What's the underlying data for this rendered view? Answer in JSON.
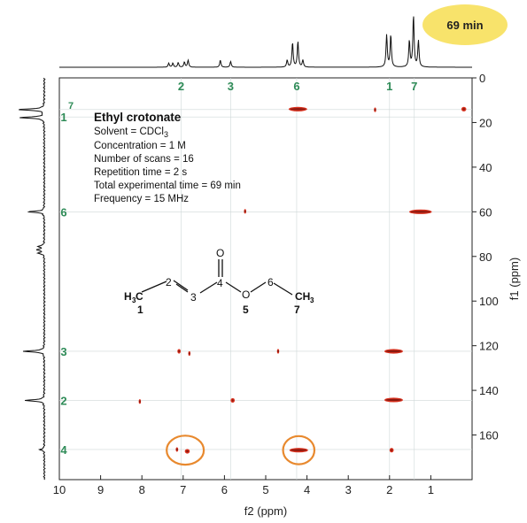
{
  "badge": {
    "text": "69 min",
    "color": "#f8e36b"
  },
  "info": {
    "title": "Ethyl crotonate",
    "solvent_prefix": "Solvent = CDCl",
    "solvent_sub": "3",
    "concentration": "Concentration = 1 M",
    "scans": "Number of scans = 16",
    "repetition": "Repetition time = 2 s",
    "total_time": "Total experimental time = 69 min",
    "frequency": "Frequency = 15 MHz"
  },
  "molecule": {
    "atoms": [
      {
        "label": "H",
        "role": "carbon-prefix"
      },
      {
        "label": "C",
        "role": "carbon"
      },
      {
        "label": "3",
        "role": "subscript"
      },
      {
        "label": "2",
        "role": "position"
      },
      {
        "label": "3",
        "role": "position"
      },
      {
        "label": "4",
        "role": "position"
      },
      {
        "label": "O",
        "role": "carbonyl-oxygen"
      },
      {
        "label": "O",
        "role": "ester-oxygen"
      },
      {
        "label": "5",
        "role": "position"
      },
      {
        "label": "6",
        "role": "position"
      },
      {
        "label": "CH",
        "role": "terminal"
      },
      {
        "label": "3",
        "role": "subscript"
      },
      {
        "label": "7",
        "role": "position"
      },
      {
        "label": "1",
        "role": "position"
      }
    ]
  },
  "chart_data": {
    "type": "scatter",
    "subtype": "2D NMR HSQC/HMBC contour plot",
    "xlabel": "f2 (ppm)",
    "ylabel": "f1 (ppm)",
    "xlim": [
      10,
      0
    ],
    "ylim": [
      0,
      180
    ],
    "xticks": [
      "10",
      "9",
      "8",
      "7",
      "6",
      "5",
      "4",
      "3",
      "2",
      "1"
    ],
    "yticks": [
      "0",
      "20",
      "40",
      "60",
      "80",
      "100",
      "120",
      "140",
      "160"
    ],
    "top_labels": [
      {
        "label": "2",
        "x": 7.05
      },
      {
        "label": "3",
        "x": 5.85
      },
      {
        "label": "6",
        "x": 4.25
      },
      {
        "label": "1",
        "x": 2.0
      },
      {
        "label": "7",
        "x": 1.4
      }
    ],
    "left_labels": [
      {
        "label": "1",
        "y": 17.5
      },
      {
        "label": "7",
        "y": 14.2,
        "superscript": true
      },
      {
        "label": "6",
        "y": 60
      },
      {
        "label": "3",
        "y": 122.5
      },
      {
        "label": "2",
        "y": 144.5
      },
      {
        "label": "4",
        "y": 166.5
      }
    ],
    "cross_peaks": [
      {
        "x": 4.22,
        "y": 14.0,
        "w": 0.45
      },
      {
        "x": 2.35,
        "y": 14.3,
        "w": 0.05
      },
      {
        "x": 0.2,
        "y": 14.0,
        "w": 0.12
      },
      {
        "x": 1.25,
        "y": 60.0,
        "w": 0.55
      },
      {
        "x": 5.5,
        "y": 59.8,
        "w": 0.05
      },
      {
        "x": 7.1,
        "y": 122.5,
        "w": 0.08
      },
      {
        "x": 6.85,
        "y": 123.5,
        "w": 0.05
      },
      {
        "x": 4.7,
        "y": 122.5,
        "w": 0.05
      },
      {
        "x": 1.9,
        "y": 122.5,
        "w": 0.45
      },
      {
        "x": 5.8,
        "y": 144.5,
        "w": 0.1
      },
      {
        "x": 8.05,
        "y": 145.0,
        "w": 0.04
      },
      {
        "x": 1.9,
        "y": 144.3,
        "w": 0.45
      },
      {
        "x": 7.15,
        "y": 166.5,
        "w": 0.06
      },
      {
        "x": 6.9,
        "y": 167.3,
        "w": 0.12
      },
      {
        "x": 4.2,
        "y": 166.8,
        "w": 0.45
      },
      {
        "x": 1.95,
        "y": 166.8,
        "w": 0.1
      }
    ],
    "highlight_circles": [
      {
        "x": 6.95,
        "y": 166.8,
        "rx": 0.45,
        "ry": 6.5
      },
      {
        "x": 4.2,
        "y": 166.8,
        "rx": 0.38,
        "ry": 6.3
      }
    ],
    "proton_peaks": [
      {
        "x": 7.35,
        "h": 0.07
      },
      {
        "x": 7.25,
        "h": 0.07
      },
      {
        "x": 7.12,
        "h": 0.08
      },
      {
        "x": 6.97,
        "h": 0.09
      },
      {
        "x": 6.88,
        "h": 0.12
      },
      {
        "x": 6.1,
        "h": 0.12
      },
      {
        "x": 5.85,
        "h": 0.1
      },
      {
        "x": 4.48,
        "h": 0.12
      },
      {
        "x": 4.35,
        "h": 0.42
      },
      {
        "x": 4.22,
        "h": 0.44
      },
      {
        "x": 4.1,
        "h": 0.12
      },
      {
        "x": 2.07,
        "h": 0.55
      },
      {
        "x": 1.97,
        "h": 0.55
      },
      {
        "x": 1.52,
        "h": 0.45
      },
      {
        "x": 1.42,
        "h": 0.88
      },
      {
        "x": 1.3,
        "h": 0.45
      }
    ],
    "carbon_peaks": [
      {
        "y": 14.2,
        "h": 1.0
      },
      {
        "y": 17.8,
        "h": 0.92
      },
      {
        "y": 60.0,
        "h": 0.6
      },
      {
        "y": 75.5,
        "h": 0.25
      },
      {
        "y": 77.0,
        "h": 0.3
      },
      {
        "y": 78.5,
        "h": 0.25
      },
      {
        "y": 122.5,
        "h": 0.8
      },
      {
        "y": 144.5,
        "h": 0.75
      },
      {
        "y": 166.5,
        "h": 0.18
      }
    ]
  }
}
